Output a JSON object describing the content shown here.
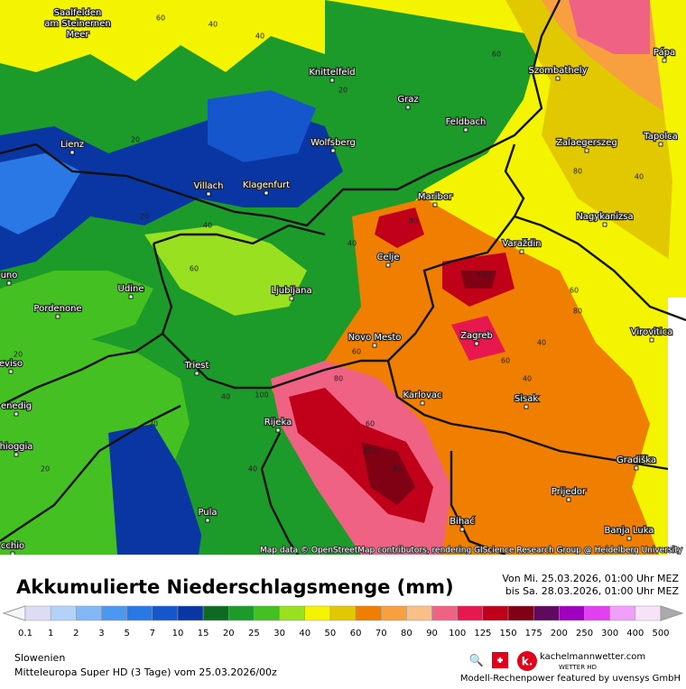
{
  "map": {
    "attribution": "Map data © OpenStreetMap contributors, rendering GIScience Research Group @ Heidelberg University",
    "title_city": {
      "lines": [
        "Saalfelden",
        "am Steinernen",
        "Meer"
      ]
    },
    "cities": [
      "Knittelfeld",
      "Szombathely",
      "Pápa",
      "Graz",
      "Feldbach",
      "Lienz",
      "Wolfsberg",
      "Zalaegerszeg",
      "Tapolca",
      "Villach",
      "Klagenfurt",
      "Maribor",
      "Nagykanizsa",
      "Varaždin",
      "Celje",
      "uno",
      "Udine",
      "Ljubljana",
      "Pordenone",
      "Novo Mesto",
      "Zagreb",
      "Virovitica",
      "eviso",
      "Triest",
      "Karlovac",
      "Sisak",
      "enedig",
      "Rijeka",
      "hioggia",
      "Gradiška",
      "Prijedor",
      "Pula",
      "Bihać",
      "Banja Luka",
      "cchio"
    ],
    "contour_labels": [
      60,
      40,
      40,
      20,
      60,
      80,
      40,
      20,
      20,
      40,
      60,
      40,
      80,
      100,
      60,
      80,
      40,
      60,
      100,
      80,
      40,
      60,
      20,
      20,
      40,
      60,
      80,
      100,
      40,
      20
    ]
  },
  "header": {
    "title": "Akkumulierte Niederschlagsmenge (mm)",
    "from": "Von Mi. 25.03.2026, 01:00 Uhr MEZ",
    "to": "bis Sa. 28.03.2026, 01:00 Uhr MEZ"
  },
  "legend": {
    "labels": [
      0.1,
      1,
      2,
      3,
      5,
      7,
      10,
      15,
      20,
      25,
      30,
      40,
      50,
      60,
      70,
      80,
      90,
      100,
      125,
      150,
      175,
      200,
      250,
      300,
      400,
      500
    ],
    "colors": [
      "#dcdcf4",
      "#b4d2f8",
      "#82b8f8",
      "#4c98f0",
      "#2a78e6",
      "#1656cc",
      "#0a36a4",
      "#0c6a22",
      "#1c9a2a",
      "#44c022",
      "#98e020",
      "#f4f400",
      "#e2c800",
      "#f07e00",
      "#f8a040",
      "#f8c088",
      "#f06284",
      "#e6184e",
      "#c00018",
      "#800014",
      "#5e0a5e",
      "#a000c0",
      "#e040f0",
      "#f0a0f8",
      "#f8e2f8"
    ]
  },
  "footer": {
    "region": "Slowenien",
    "model": "Mitteleuropa Super HD (3 Tage) vom 25.03.2026/00z",
    "brand": "kachelmannwetter.com",
    "brand_sub": "WETTER HD",
    "credit": "Modell-Rechenpower featured by uvensys GmbH"
  }
}
